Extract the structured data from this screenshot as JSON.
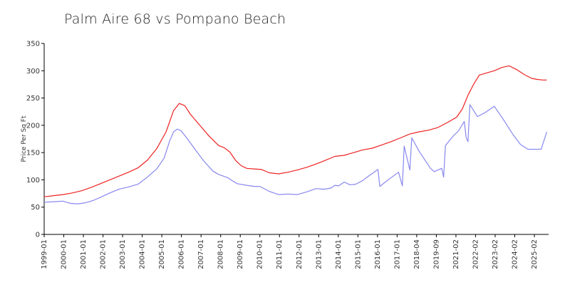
{
  "chart_data": {
    "type": "line",
    "title": "Palm Aire 68 vs Pompano Beach",
    "xlabel": "",
    "ylabel": "Price Per Sq Ft",
    "ylim": [
      0,
      350
    ],
    "yticks": [
      0,
      50,
      100,
      150,
      200,
      250,
      300,
      350
    ],
    "xlim": [
      1999.0,
      2025.9
    ],
    "xtick_labels": [
      "1999-01",
      "2000-01",
      "2001-01",
      "2002-01",
      "2003-01",
      "2004-01",
      "2005-01",
      "2006-01",
      "2007-01",
      "2008-01",
      "2009-01",
      "2010-01",
      "2011-01",
      "2012-01",
      "2013-01",
      "2014-01",
      "2015-01",
      "2016-01",
      "2017-01",
      "2018-04",
      "2019-09",
      "2021-02",
      "2022-02",
      "2023-02",
      "2024-02",
      "2025-02"
    ],
    "grid": false,
    "series": [
      {
        "color": "#ee2222",
        "points": [
          [
            1999.0,
            69
          ],
          [
            1999.5,
            71
          ],
          [
            2000.0,
            73
          ],
          [
            2000.5,
            76
          ],
          [
            2001.0,
            80
          ],
          [
            2001.5,
            86
          ],
          [
            2002.0,
            93
          ],
          [
            2002.5,
            100
          ],
          [
            2003.0,
            107
          ],
          [
            2003.5,
            114
          ],
          [
            2004.0,
            122
          ],
          [
            2004.5,
            136
          ],
          [
            2005.0,
            157
          ],
          [
            2005.5,
            188
          ],
          [
            2005.9,
            227
          ],
          [
            2006.2,
            240
          ],
          [
            2006.5,
            236
          ],
          [
            2006.8,
            220
          ],
          [
            2007.3,
            200
          ],
          [
            2007.8,
            180
          ],
          [
            2008.3,
            163
          ],
          [
            2008.6,
            159
          ],
          [
            2008.9,
            151
          ],
          [
            2009.2,
            136
          ],
          [
            2009.5,
            126
          ],
          [
            2009.8,
            121
          ],
          [
            2010.2,
            120
          ],
          [
            2010.6,
            119
          ],
          [
            2011.0,
            113
          ],
          [
            2011.5,
            111
          ],
          [
            2012.0,
            114
          ],
          [
            2012.5,
            118
          ],
          [
            2013.0,
            123
          ],
          [
            2013.5,
            129
          ],
          [
            2014.0,
            136
          ],
          [
            2014.5,
            143
          ],
          [
            2015.0,
            145
          ],
          [
            2015.3,
            148
          ],
          [
            2015.6,
            151
          ],
          [
            2016.0,
            155
          ],
          [
            2016.5,
            158
          ],
          [
            2017.0,
            164
          ],
          [
            2017.5,
            170
          ],
          [
            2018.0,
            177
          ],
          [
            2018.5,
            184
          ],
          [
            2019.0,
            188
          ],
          [
            2019.5,
            191
          ],
          [
            2020.0,
            196
          ],
          [
            2020.5,
            205
          ],
          [
            2021.0,
            215
          ],
          [
            2021.3,
            230
          ],
          [
            2021.6,
            255
          ],
          [
            2021.9,
            275
          ],
          [
            2022.2,
            292
          ],
          [
            2022.6,
            296
          ],
          [
            2023.0,
            300
          ],
          [
            2023.4,
            306
          ],
          [
            2023.8,
            309
          ],
          [
            2024.2,
            302
          ],
          [
            2024.6,
            293
          ],
          [
            2025.0,
            286
          ],
          [
            2025.3,
            284
          ],
          [
            2025.6,
            283
          ],
          [
            2025.8,
            283
          ]
        ]
      },
      {
        "color": "#8888ee",
        "points": [
          [
            1999.0,
            59
          ],
          [
            1999.5,
            60
          ],
          [
            2000.0,
            61
          ],
          [
            2000.4,
            57
          ],
          [
            2000.8,
            56
          ],
          [
            2001.2,
            58
          ],
          [
            2001.6,
            62
          ],
          [
            2002.0,
            68
          ],
          [
            2002.5,
            76
          ],
          [
            2003.0,
            83
          ],
          [
            2003.5,
            87
          ],
          [
            2004.0,
            92
          ],
          [
            2004.5,
            105
          ],
          [
            2005.0,
            120
          ],
          [
            2005.4,
            140
          ],
          [
            2005.7,
            172
          ],
          [
            2005.9,
            188
          ],
          [
            2006.1,
            193
          ],
          [
            2006.3,
            190
          ],
          [
            2006.6,
            177
          ],
          [
            2007.0,
            158
          ],
          [
            2007.5,
            135
          ],
          [
            2008.0,
            116
          ],
          [
            2008.3,
            110
          ],
          [
            2008.8,
            104
          ],
          [
            2009.0,
            99
          ],
          [
            2009.3,
            93
          ],
          [
            2009.8,
            90
          ],
          [
            2010.2,
            88
          ],
          [
            2010.5,
            88
          ],
          [
            2011.0,
            79
          ],
          [
            2011.5,
            73
          ],
          [
            2012.0,
            74
          ],
          [
            2012.5,
            73
          ],
          [
            2013.0,
            78
          ],
          [
            2013.5,
            84
          ],
          [
            2013.8,
            83
          ],
          [
            2014.0,
            83
          ],
          [
            2014.3,
            85
          ],
          [
            2014.5,
            90
          ],
          [
            2014.7,
            89
          ],
          [
            2015.0,
            96
          ],
          [
            2015.3,
            91
          ],
          [
            2015.6,
            92
          ],
          [
            2016.0,
            99
          ],
          [
            2016.3,
            107
          ],
          [
            2016.8,
            119
          ],
          [
            2016.9,
            88
          ],
          [
            2017.3,
            99
          ],
          [
            2017.9,
            114
          ],
          [
            2018.1,
            89
          ],
          [
            2018.2,
            162
          ],
          [
            2018.5,
            118
          ],
          [
            2018.6,
            177
          ],
          [
            2019.0,
            152
          ],
          [
            2019.6,
            121
          ],
          [
            2019.8,
            115
          ],
          [
            2020.2,
            121
          ],
          [
            2020.3,
            105
          ],
          [
            2020.4,
            163
          ],
          [
            2020.8,
            180
          ],
          [
            2021.1,
            190
          ],
          [
            2021.4,
            207
          ],
          [
            2021.5,
            178
          ],
          [
            2021.6,
            170
          ],
          [
            2021.7,
            238
          ],
          [
            2022.1,
            216
          ],
          [
            2022.5,
            223
          ],
          [
            2023.0,
            235
          ],
          [
            2023.5,
            210
          ],
          [
            2024.0,
            183
          ],
          [
            2024.4,
            165
          ],
          [
            2024.8,
            156
          ],
          [
            2025.2,
            156
          ],
          [
            2025.5,
            156
          ],
          [
            2025.8,
            188
          ]
        ]
      }
    ]
  }
}
